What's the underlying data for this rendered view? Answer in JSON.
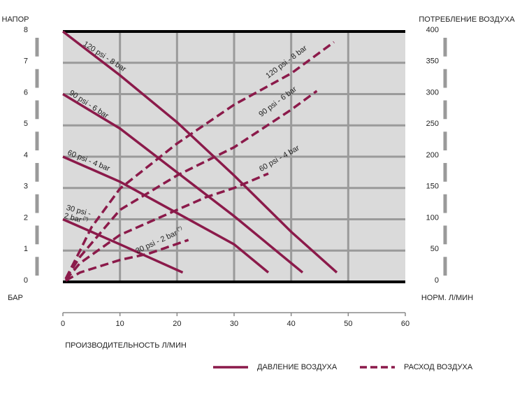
{
  "chart_data": {
    "type": "line",
    "y_label_top": "НАПОР",
    "y_label_unit": "БАР",
    "y2_label_top": "ПОТРЕБЛЕНИЕ ВОЗДУХА",
    "y2_label_unit": "НОРМ. Л/МИН",
    "x_label": "ПРОИЗВОДИТЕЛЬНОСТЬ  Л/МИН",
    "xlim": [
      0,
      60
    ],
    "xticks": [
      0,
      10,
      20,
      30,
      40,
      50,
      60
    ],
    "ylim": [
      0,
      8
    ],
    "yticks": [
      0,
      1,
      2,
      3,
      4,
      5,
      6,
      7,
      8
    ],
    "y2lim": [
      0,
      400
    ],
    "y2ticks": [
      0,
      50,
      100,
      150,
      200,
      250,
      300,
      350,
      400
    ],
    "grid": true,
    "legend": [
      {
        "label": "ДАВЛЕНИЕ ВОЗДУХА",
        "style": "solid"
      },
      {
        "label": "РАСХОД ВОЗДУХА",
        "style": "dashed"
      }
    ],
    "series": [
      {
        "label": [
          "120 psi - 8 bar"
        ],
        "style": "solid",
        "color": "#8b1a4a",
        "x": [
          0,
          10,
          20,
          30,
          40,
          48
        ],
        "values": [
          8,
          6.6,
          5.1,
          3.4,
          1.6,
          0.3
        ]
      },
      {
        "label": [
          "90 psi - 6 bar"
        ],
        "style": "solid",
        "color": "#8b1a4a",
        "x": [
          0,
          10,
          20,
          30,
          42
        ],
        "values": [
          6,
          4.9,
          3.5,
          2.1,
          0.3
        ]
      },
      {
        "label": [
          "60 psi - 4 bar"
        ],
        "style": "solid",
        "color": "#8b1a4a",
        "x": [
          0,
          10,
          20,
          30,
          36
        ],
        "values": [
          4,
          3.2,
          2.2,
          1.2,
          0.3
        ]
      },
      {
        "label": [
          "30 psi -",
          "2 bar"
        ],
        "note": "(*)",
        "style": "solid",
        "color": "#8b1a4a",
        "x": [
          0,
          10,
          21
        ],
        "values": [
          2,
          1.2,
          0.3
        ]
      },
      {
        "label": [
          "120 psi - 8 bar"
        ],
        "style": "dashed",
        "axis": "y2",
        "color": "#8b1a4a",
        "x": [
          0.5,
          3,
          5,
          10,
          20,
          30,
          40,
          47.5
        ],
        "values": [
          5,
          50,
          87,
          149,
          221,
          283,
          333,
          383
        ]
      },
      {
        "label": [
          "90 psi - 6 bar"
        ],
        "style": "dashed",
        "axis": "y2",
        "color": "#8b1a4a",
        "x": [
          0.5,
          3,
          10,
          20,
          30,
          40,
          44.5
        ],
        "values": [
          5,
          40,
          115,
          170,
          215,
          275,
          305
        ]
      },
      {
        "label": [
          "60 psi - 4 bar"
        ],
        "style": "dashed",
        "axis": "y2",
        "color": "#8b1a4a",
        "x": [
          0.5,
          3,
          10,
          20,
          25,
          30,
          36
        ],
        "values": [
          3,
          30,
          75,
          115,
          135,
          150,
          173
        ]
      },
      {
        "label": [
          "30 psi - 2 bar"
        ],
        "note": "(*)",
        "style": "dashed",
        "axis": "y2",
        "color": "#8b1a4a",
        "x": [
          0.5,
          3,
          10,
          15,
          22
        ],
        "values": [
          2,
          15,
          35,
          45,
          67
        ]
      }
    ]
  }
}
